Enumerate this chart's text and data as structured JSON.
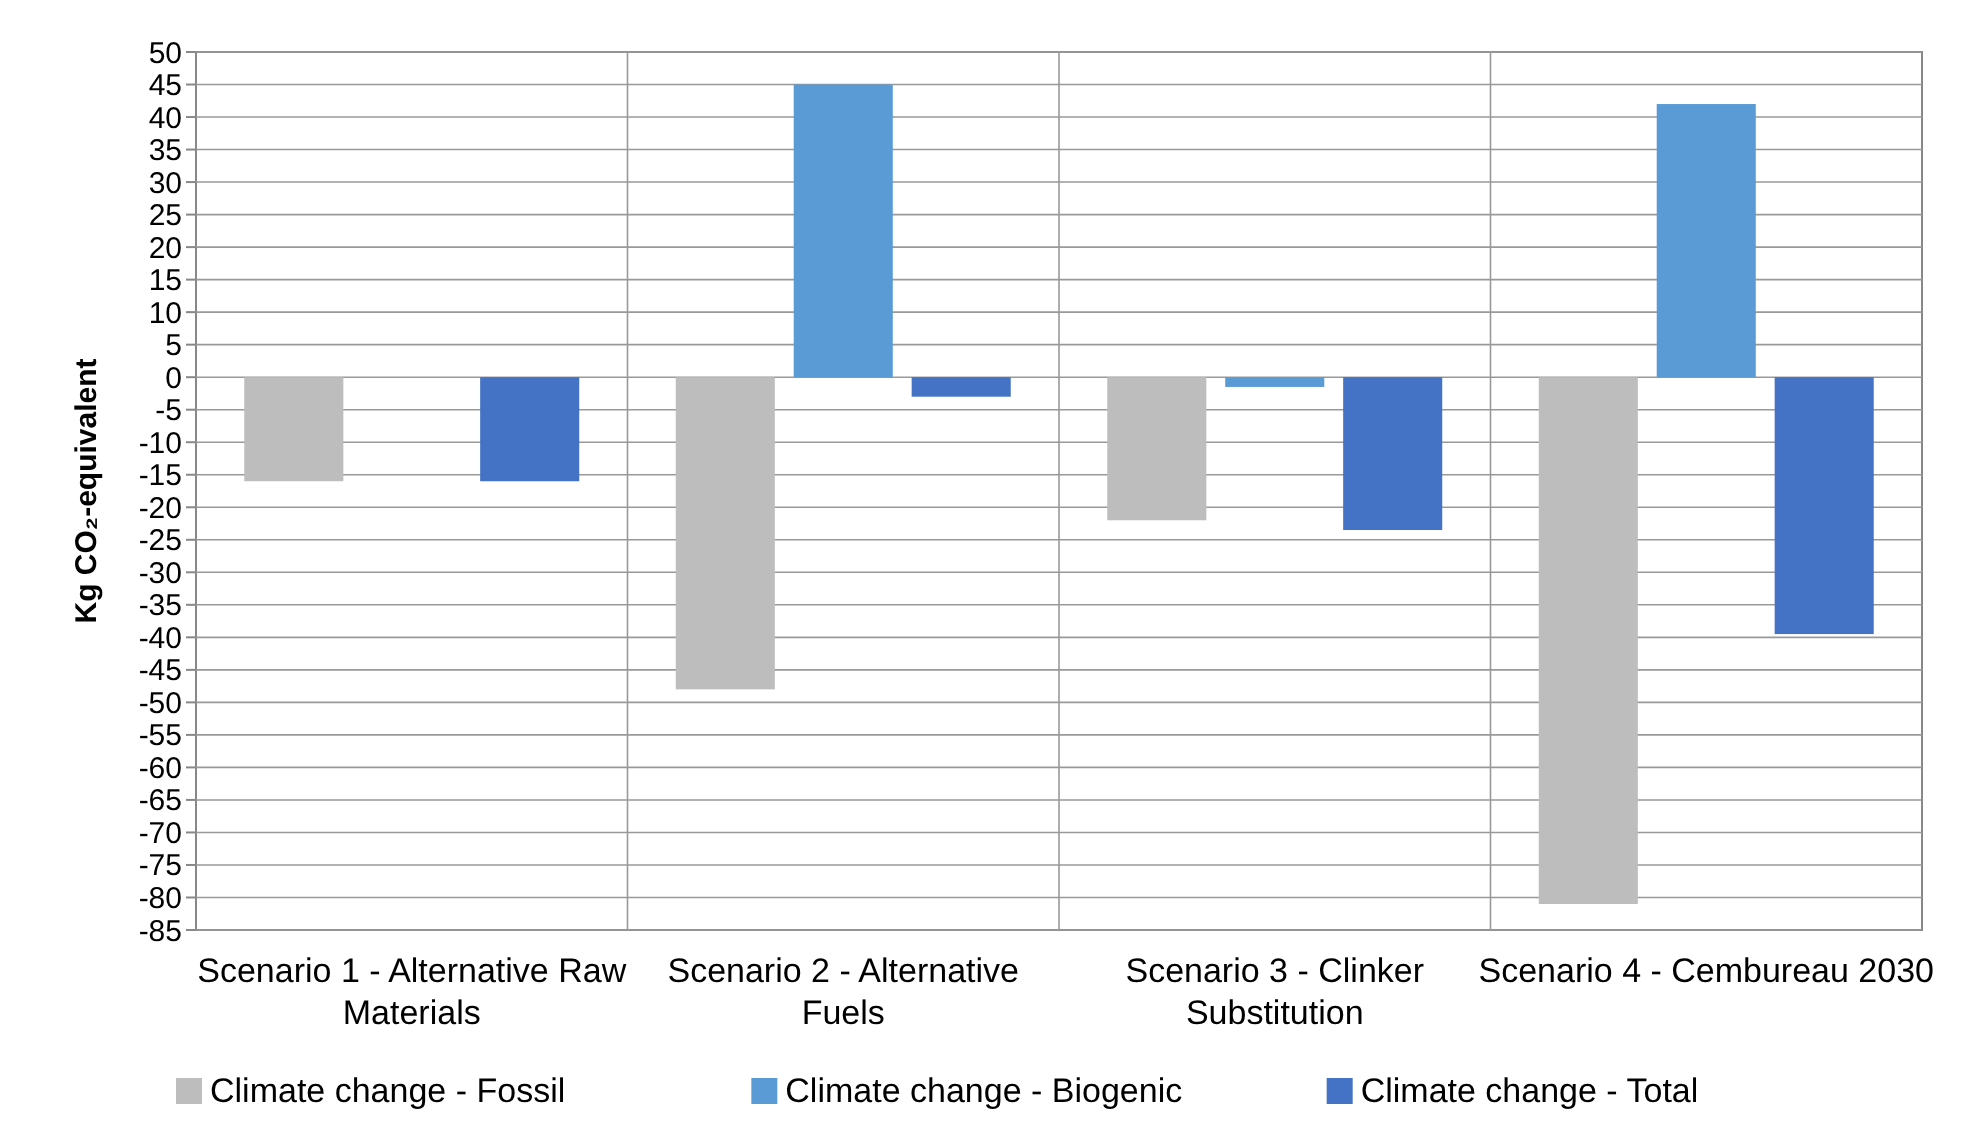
{
  "chart_data": {
    "type": "bar",
    "ylabel": "Kg CO₂-equivalent",
    "categories": [
      "Scenario 1 - Alternative Raw Materials",
      "Scenario 2 - Alternative Fuels",
      "Scenario 3 - Clinker Substitution",
      "Scenario 4 - Cembureau 2030"
    ],
    "series": [
      {
        "name": "Climate change - Fossil",
        "color": "#bdbdbd",
        "values": [
          -16,
          -48,
          -22,
          -81
        ]
      },
      {
        "name": "Climate change - Biogenic",
        "color": "#5b9bd5",
        "values": [
          null,
          45,
          -1.5,
          42
        ]
      },
      {
        "name": "Climate change - Total",
        "color": "#4472c4",
        "values": [
          -16,
          -3,
          -23.5,
          -39.5
        ]
      }
    ],
    "ylim": [
      -85,
      50
    ],
    "yticks": [
      50,
      45,
      40,
      35,
      30,
      25,
      20,
      15,
      10,
      5,
      0,
      -5,
      -10,
      -15,
      -20,
      -25,
      -30,
      -35,
      -40,
      -45,
      -50,
      -55,
      -60,
      -65,
      -70,
      -75,
      -80,
      -85
    ],
    "grid": true,
    "legend": "bottom"
  }
}
